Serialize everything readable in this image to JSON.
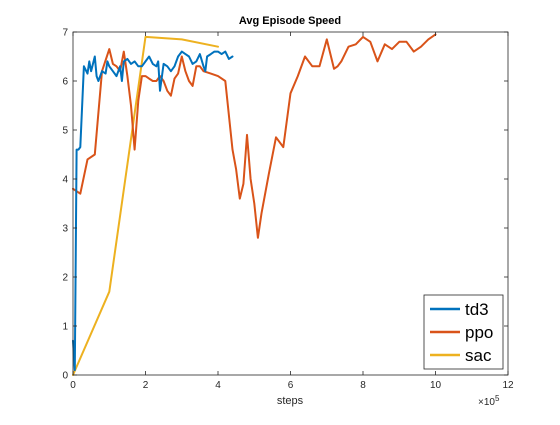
{
  "chart_data": {
    "type": "line",
    "title": "Avg Episode Speed",
    "xlabel": "steps",
    "ylabel": "",
    "x_exponent_label": "×10",
    "x_exponent_power": "5",
    "xlim": [
      0,
      1200000
    ],
    "ylim": [
      0,
      7
    ],
    "x_ticks": [
      0,
      200000,
      400000,
      600000,
      800000,
      1000000,
      1200000
    ],
    "x_tick_labels": [
      "0",
      "2",
      "4",
      "6",
      "8",
      "10",
      "12"
    ],
    "y_ticks": [
      0,
      1,
      2,
      3,
      4,
      5,
      6,
      7
    ],
    "y_tick_labels": [
      "0",
      "1",
      "2",
      "3",
      "4",
      "5",
      "6",
      "7"
    ],
    "grid": false,
    "legend_position": "bottom-right",
    "series": [
      {
        "name": "td3",
        "color": "#0072bd",
        "x": [
          0,
          5000,
          10000,
          15000,
          20000,
          30000,
          40000,
          45000,
          50000,
          60000,
          65000,
          70000,
          80000,
          90000,
          95000,
          100000,
          110000,
          120000,
          130000,
          135000,
          140000,
          150000,
          160000,
          170000,
          180000,
          190000,
          200000,
          210000,
          220000,
          230000,
          235000,
          240000,
          250000,
          260000,
          270000,
          280000,
          290000,
          300000,
          310000,
          320000,
          330000,
          340000,
          350000,
          360000,
          365000,
          370000,
          380000,
          390000,
          400000,
          410000,
          420000,
          430000,
          440000
        ],
        "y": [
          0.7,
          0.1,
          4.6,
          4.6,
          4.65,
          6.3,
          6.15,
          6.4,
          6.2,
          6.5,
          6.1,
          6.0,
          6.2,
          6.15,
          6.4,
          6.3,
          6.2,
          6.1,
          6.3,
          6.0,
          6.4,
          6.45,
          6.35,
          6.4,
          6.3,
          6.3,
          6.4,
          6.5,
          6.35,
          6.3,
          6.4,
          5.8,
          6.35,
          6.3,
          6.2,
          6.3,
          6.5,
          6.6,
          6.55,
          6.5,
          6.35,
          6.4,
          6.55,
          6.3,
          6.2,
          6.5,
          6.55,
          6.6,
          6.6,
          6.55,
          6.6,
          6.45,
          6.5
        ]
      },
      {
        "name": "ppo",
        "color": "#d95319",
        "x": [
          0,
          20000,
          40000,
          60000,
          80000,
          100000,
          110000,
          120000,
          130000,
          140000,
          150000,
          160000,
          170000,
          180000,
          190000,
          200000,
          210000,
          220000,
          230000,
          240000,
          250000,
          260000,
          270000,
          280000,
          290000,
          300000,
          310000,
          320000,
          330000,
          340000,
          350000,
          360000,
          380000,
          400000,
          420000,
          440000,
          450000,
          460000,
          470000,
          480000,
          490000,
          500000,
          510000,
          520000,
          540000,
          560000,
          580000,
          600000,
          620000,
          640000,
          660000,
          680000,
          700000,
          720000,
          730000,
          740000,
          760000,
          780000,
          800000,
          820000,
          840000,
          860000,
          880000,
          900000,
          920000,
          940000,
          960000,
          980000,
          1000000
        ],
        "y": [
          3.8,
          3.7,
          4.4,
          4.5,
          6.2,
          6.65,
          6.35,
          6.3,
          6.2,
          6.6,
          6.1,
          5.5,
          4.6,
          5.6,
          6.1,
          6.1,
          6.05,
          6.0,
          6.0,
          6.1,
          6.0,
          5.8,
          5.7,
          6.05,
          6.15,
          6.5,
          6.2,
          6.0,
          5.9,
          6.3,
          6.3,
          6.2,
          6.15,
          6.1,
          6.0,
          4.6,
          4.2,
          3.6,
          3.9,
          4.9,
          4.0,
          3.5,
          2.8,
          3.3,
          4.1,
          4.85,
          4.65,
          5.75,
          6.1,
          6.5,
          6.3,
          6.3,
          6.85,
          6.25,
          6.3,
          6.4,
          6.7,
          6.75,
          6.9,
          6.8,
          6.4,
          6.75,
          6.65,
          6.8,
          6.8,
          6.6,
          6.7,
          6.85,
          6.95
        ]
      },
      {
        "name": "sac",
        "color": "#edb120",
        "x": [
          0,
          100000,
          200000,
          300000,
          400000
        ],
        "y": [
          0.0,
          1.7,
          6.9,
          6.85,
          6.7
        ]
      }
    ]
  }
}
